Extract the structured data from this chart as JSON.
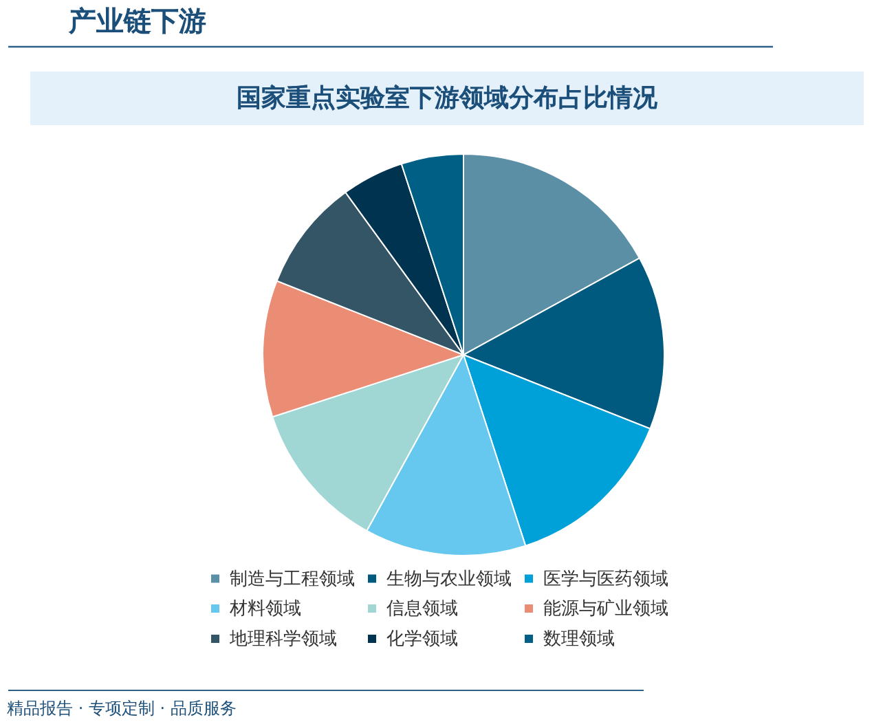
{
  "chart_data": {
    "type": "pie",
    "title": "国家重点实验室下游领域分布占比情况",
    "annotations": [
      "产业链下游",
      "精品报告 · 专项定制 · 品质服务"
    ],
    "categories": [
      "制造与工程领域",
      "生物与农业领域",
      "医学与医药领域",
      "材料领域",
      "信息领域",
      "能源与矿业领域",
      "地理科学领域",
      "化学领域",
      "数理领域"
    ],
    "values": [
      17,
      14,
      14,
      13,
      12,
      11,
      9,
      5,
      5
    ],
    "colors": [
      "#5b8fa6",
      "#005a80",
      "#00a0d8",
      "#66c8ee",
      "#a0d6d4",
      "#eb8c74",
      "#335566",
      "#00334f",
      "#005f85"
    ],
    "legend": "bottom"
  }
}
